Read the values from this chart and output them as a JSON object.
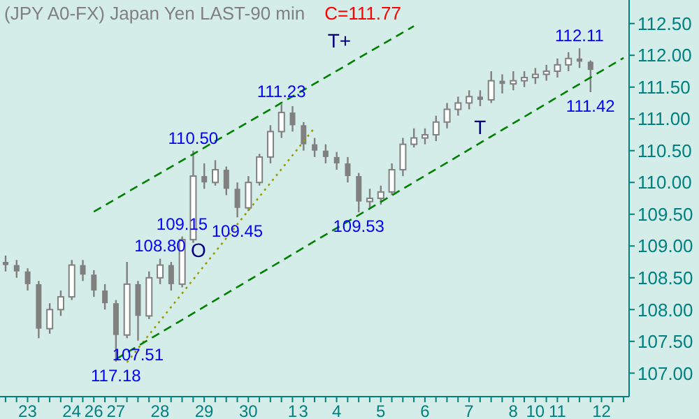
{
  "chart_data": {
    "type": "candlestick",
    "title": "(JPY A0-FX) Japan Yen LAST-90 min",
    "color": "#808080",
    "annotations": [
      "C=111.77",
      {
        "text": "117.18",
        "y": 107.18
      },
      {
        "text": "107.51",
        "y": 107.51
      },
      {
        "text": "108.80",
        "y": 108.8
      },
      {
        "text": "109.15",
        "y": 109.15
      },
      {
        "text": "110.50",
        "y": 110.5
      },
      {
        "text": "109.45",
        "y": 109.45
      },
      {
        "text": "111.23",
        "y": 111.23
      },
      {
        "text": "109.53",
        "y": 109.53
      },
      {
        "text": "112.11",
        "y": 112.11
      },
      {
        "text": "111.42",
        "y": 111.42
      }
    ],
    "categories": [
      null,
      null,
      "23",
      null,
      null,
      null,
      "24",
      null,
      "26",
      null,
      "27",
      null,
      null,
      null,
      "28",
      null,
      null,
      null,
      "29",
      null,
      null,
      null,
      "30",
      null,
      null,
      null,
      "1",
      "3",
      null,
      null,
      "4",
      null,
      null,
      null,
      "5",
      null,
      null,
      null,
      "6",
      null,
      null,
      null,
      "7",
      null,
      null,
      null,
      "8",
      null,
      "10",
      null,
      "11",
      null,
      null,
      null,
      "12",
      null,
      null
    ],
    "ohlc": [
      [
        108.75,
        108.85,
        108.6,
        108.7
      ],
      [
        108.7,
        108.78,
        108.5,
        108.6
      ],
      [
        108.6,
        108.65,
        108.3,
        108.4
      ],
      [
        108.4,
        108.45,
        107.55,
        107.7
      ],
      [
        107.7,
        108.1,
        107.62,
        108.0
      ],
      [
        108.0,
        108.3,
        107.9,
        108.2
      ],
      [
        108.2,
        108.78,
        108.15,
        108.7
      ],
      [
        108.7,
        108.78,
        108.45,
        108.55
      ],
      [
        108.55,
        108.62,
        108.2,
        108.3
      ],
      [
        108.3,
        108.4,
        108.0,
        108.1
      ],
      [
        108.1,
        108.15,
        107.18,
        107.6
      ],
      [
        107.6,
        108.75,
        107.55,
        108.4
      ],
      [
        108.4,
        108.45,
        107.51,
        107.9
      ],
      [
        107.9,
        108.6,
        107.85,
        108.5
      ],
      [
        108.5,
        108.8,
        108.4,
        108.7
      ],
      [
        108.7,
        108.75,
        108.3,
        108.4
      ],
      [
        108.4,
        109.15,
        108.35,
        109.1
      ],
      [
        109.1,
        110.5,
        109.05,
        110.1
      ],
      [
        110.1,
        110.3,
        109.9,
        110.0
      ],
      [
        110.0,
        110.35,
        109.95,
        110.2
      ],
      [
        110.2,
        110.25,
        109.8,
        109.9
      ],
      [
        109.9,
        110.0,
        109.45,
        109.6
      ],
      [
        109.6,
        110.1,
        109.55,
        110.0
      ],
      [
        110.0,
        110.45,
        109.95,
        110.4
      ],
      [
        110.4,
        110.9,
        110.3,
        110.8
      ],
      [
        110.8,
        111.23,
        110.7,
        111.1
      ],
      [
        111.1,
        111.2,
        110.8,
        110.9
      ],
      [
        110.9,
        110.95,
        110.5,
        110.6
      ],
      [
        110.6,
        110.7,
        110.4,
        110.5
      ],
      [
        110.5,
        110.6,
        110.3,
        110.4
      ],
      [
        110.4,
        110.48,
        110.2,
        110.3
      ],
      [
        110.3,
        110.4,
        110.0,
        110.1
      ],
      [
        110.1,
        110.15,
        109.53,
        109.7
      ],
      [
        109.7,
        109.9,
        109.6,
        109.75
      ],
      [
        109.75,
        109.95,
        109.65,
        109.85
      ],
      [
        109.85,
        110.3,
        109.8,
        110.2
      ],
      [
        110.2,
        110.7,
        110.1,
        110.6
      ],
      [
        110.6,
        110.85,
        110.55,
        110.7
      ],
      [
        110.7,
        110.85,
        110.6,
        110.75
      ],
      [
        110.75,
        111.05,
        110.65,
        110.95
      ],
      [
        110.95,
        111.25,
        110.85,
        111.15
      ],
      [
        111.15,
        111.35,
        111.05,
        111.25
      ],
      [
        111.25,
        111.45,
        111.15,
        111.35
      ],
      [
        111.35,
        111.45,
        111.2,
        111.3
      ],
      [
        111.3,
        111.75,
        111.25,
        111.6
      ],
      [
        111.6,
        111.7,
        111.4,
        111.55
      ],
      [
        111.55,
        111.75,
        111.45,
        111.6
      ],
      [
        111.6,
        111.75,
        111.5,
        111.65
      ],
      [
        111.65,
        111.8,
        111.55,
        111.7
      ],
      [
        111.7,
        111.85,
        111.6,
        111.75
      ],
      [
        111.75,
        111.95,
        111.65,
        111.85
      ],
      [
        111.85,
        112.05,
        111.75,
        111.95
      ],
      [
        111.95,
        112.11,
        111.8,
        111.9
      ],
      [
        111.9,
        111.92,
        111.42,
        111.77
      ],
      null,
      null,
      null
    ],
    "series": [
      {
        "type": "line",
        "name": "T+",
        "color": "#008000",
        "line_style": "dashed",
        "values": [
          null,
          null,
          null,
          null,
          null,
          null,
          null,
          null,
          109.54,
          null,
          null,
          null,
          null,
          null,
          null,
          null,
          null,
          null,
          null,
          null,
          null,
          null,
          null,
          null,
          null,
          null,
          null,
          null,
          null,
          null,
          null,
          null,
          null,
          null,
          null,
          null,
          null,
          112.46,
          null,
          null,
          null,
          null,
          null,
          null,
          null,
          null,
          null,
          null,
          null,
          null,
          null,
          null,
          null,
          null,
          null,
          null,
          null
        ]
      },
      {
        "type": "line",
        "name": "O",
        "color": "#999900",
        "line_style": "dotted",
        "values": [
          null,
          null,
          null,
          null,
          null,
          null,
          null,
          null,
          null,
          null,
          null,
          107.17,
          null,
          null,
          null,
          null,
          null,
          null,
          null,
          null,
          null,
          null,
          null,
          null,
          null,
          null,
          null,
          null,
          110.86,
          null,
          null,
          null,
          null,
          null,
          null,
          null,
          null,
          null,
          null,
          null,
          null,
          null,
          null,
          null,
          null,
          null,
          null,
          null,
          null,
          null,
          null,
          null,
          null,
          null,
          null,
          null,
          null
        ]
      },
      {
        "type": "line",
        "name": "T",
        "color": "#008000",
        "line_style": "dashed",
        "values": [
          null,
          null,
          null,
          null,
          null,
          null,
          null,
          null,
          null,
          null,
          107.22,
          null,
          null,
          null,
          null,
          null,
          null,
          null,
          null,
          null,
          null,
          null,
          null,
          null,
          null,
          null,
          null,
          null,
          null,
          null,
          null,
          null,
          null,
          null,
          null,
          null,
          null,
          null,
          null,
          null,
          null,
          null,
          null,
          null,
          null,
          null,
          null,
          null,
          null,
          null,
          null,
          null,
          null,
          null,
          null,
          null,
          111.96
        ]
      }
    ],
    "ylim": [
      106.63,
      112.87
    ],
    "yticks": [
      {
        "value": 107,
        "label": "107.00"
      },
      {
        "value": 107.5,
        "label": "107.50"
      },
      {
        "value": 108,
        "label": "108.00"
      },
      {
        "value": 108.5,
        "label": "108.50"
      },
      {
        "value": 109,
        "label": "109.00"
      },
      {
        "value": 109.5,
        "label": "109.50"
      },
      {
        "value": 110,
        "label": "110.00"
      },
      {
        "value": 110.5,
        "label": "110.50"
      },
      {
        "value": 111,
        "label": "111.00"
      },
      {
        "value": 111.5,
        "label": "111.50"
      },
      {
        "value": 112,
        "label": "112.00"
      },
      {
        "value": 112.5,
        "label": "112.50"
      }
    ]
  }
}
